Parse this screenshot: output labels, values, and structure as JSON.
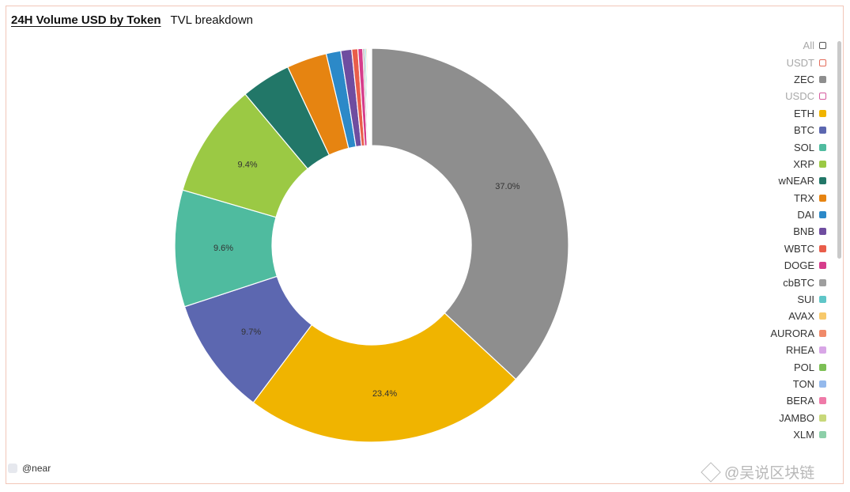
{
  "tabs": {
    "active": "24H Volume USD by Token",
    "inactive": "TVL breakdown"
  },
  "chart_data": {
    "type": "pie",
    "donut": true,
    "start_angle_deg": 0,
    "clockwise": true,
    "slices": [
      {
        "name": "ZEC",
        "value": 37.0,
        "label": "37.0%",
        "color": "#8e8e8e"
      },
      {
        "name": "ETH",
        "value": 23.4,
        "label": "23.4%",
        "color": "#f0b400"
      },
      {
        "name": "BTC",
        "value": 9.7,
        "label": "9.7%",
        "color": "#5c67b0"
      },
      {
        "name": "SOL",
        "value": 9.6,
        "label": "9.6%",
        "color": "#4fbb9f"
      },
      {
        "name": "XRP",
        "value": 9.4,
        "label": "9.4%",
        "color": "#9bc944"
      },
      {
        "name": "wNEAR",
        "value": 4.1,
        "label": "",
        "color": "#227768"
      },
      {
        "name": "TRX",
        "value": 3.3,
        "label": "",
        "color": "#e68411"
      },
      {
        "name": "DAI",
        "value": 1.2,
        "label": "",
        "color": "#2c89c8"
      },
      {
        "name": "BNB",
        "value": 0.9,
        "label": "",
        "color": "#6f4da0"
      },
      {
        "name": "WBTC",
        "value": 0.5,
        "label": "",
        "color": "#e95d4a"
      },
      {
        "name": "DOGE",
        "value": 0.4,
        "label": "",
        "color": "#d63d8b"
      },
      {
        "name": "cbBTC",
        "value": 0.15,
        "label": "",
        "color": "#9e9e9e"
      },
      {
        "name": "SUI",
        "value": 0.12,
        "label": "",
        "color": "#5fc6c8"
      },
      {
        "name": "AVAX",
        "value": 0.1,
        "label": "",
        "color": "#f7c96b"
      },
      {
        "name": "AURORA",
        "value": 0.08,
        "label": "",
        "color": "#f08a6a"
      },
      {
        "name": "RHEA",
        "value": 0.06,
        "label": "",
        "color": "#d8a6e6"
      },
      {
        "name": "POL",
        "value": 0.06,
        "label": "",
        "color": "#7cbf55"
      },
      {
        "name": "TON",
        "value": 0.05,
        "label": "",
        "color": "#94b9ec"
      },
      {
        "name": "BERA",
        "value": 0.04,
        "label": "",
        "color": "#ef7aa8"
      },
      {
        "name": "JAMBO",
        "value": 0.03,
        "label": "",
        "color": "#c8d87a"
      },
      {
        "name": "XLM",
        "value": 0.03,
        "label": "",
        "color": "#8ccfa8"
      }
    ]
  },
  "legend": [
    {
      "label": "All",
      "color": "#555555",
      "outline": true,
      "disabled": true
    },
    {
      "label": "USDT",
      "color": "#e46c5b",
      "outline": true,
      "disabled": true
    },
    {
      "label": "ZEC",
      "color": "#8e8e8e",
      "outline": false,
      "disabled": false
    },
    {
      "label": "USDC",
      "color": "#d65a9e",
      "outline": true,
      "disabled": true
    },
    {
      "label": "ETH",
      "color": "#f0b400",
      "outline": false,
      "disabled": false
    },
    {
      "label": "BTC",
      "color": "#5c67b0",
      "outline": false,
      "disabled": false
    },
    {
      "label": "SOL",
      "color": "#4fbb9f",
      "outline": false,
      "disabled": false
    },
    {
      "label": "XRP",
      "color": "#9bc944",
      "outline": false,
      "disabled": false
    },
    {
      "label": "wNEAR",
      "color": "#227768",
      "outline": false,
      "disabled": false
    },
    {
      "label": "TRX",
      "color": "#e68411",
      "outline": false,
      "disabled": false
    },
    {
      "label": "DAI",
      "color": "#2c89c8",
      "outline": false,
      "disabled": false
    },
    {
      "label": "BNB",
      "color": "#6f4da0",
      "outline": false,
      "disabled": false
    },
    {
      "label": "WBTC",
      "color": "#e95d4a",
      "outline": false,
      "disabled": false
    },
    {
      "label": "DOGE",
      "color": "#d63d8b",
      "outline": false,
      "disabled": false
    },
    {
      "label": "cbBTC",
      "color": "#9e9e9e",
      "outline": false,
      "disabled": false
    },
    {
      "label": "SUI",
      "color": "#5fc6c8",
      "outline": false,
      "disabled": false
    },
    {
      "label": "AVAX",
      "color": "#f7c96b",
      "outline": false,
      "disabled": false
    },
    {
      "label": "AURORA",
      "color": "#f08a6a",
      "outline": false,
      "disabled": false
    },
    {
      "label": "RHEA",
      "color": "#d8a6e6",
      "outline": false,
      "disabled": false
    },
    {
      "label": "POL",
      "color": "#7cbf55",
      "outline": false,
      "disabled": false
    },
    {
      "label": "TON",
      "color": "#94b9ec",
      "outline": false,
      "disabled": false
    },
    {
      "label": "BERA",
      "color": "#ef7aa8",
      "outline": false,
      "disabled": false
    },
    {
      "label": "JAMBO",
      "color": "#c8d87a",
      "outline": false,
      "disabled": false
    },
    {
      "label": "XLM",
      "color": "#8ccfa8",
      "outline": false,
      "disabled": false
    }
  ],
  "footer": {
    "handle": "@near"
  },
  "watermark": {
    "text": "@吴说区块链"
  }
}
